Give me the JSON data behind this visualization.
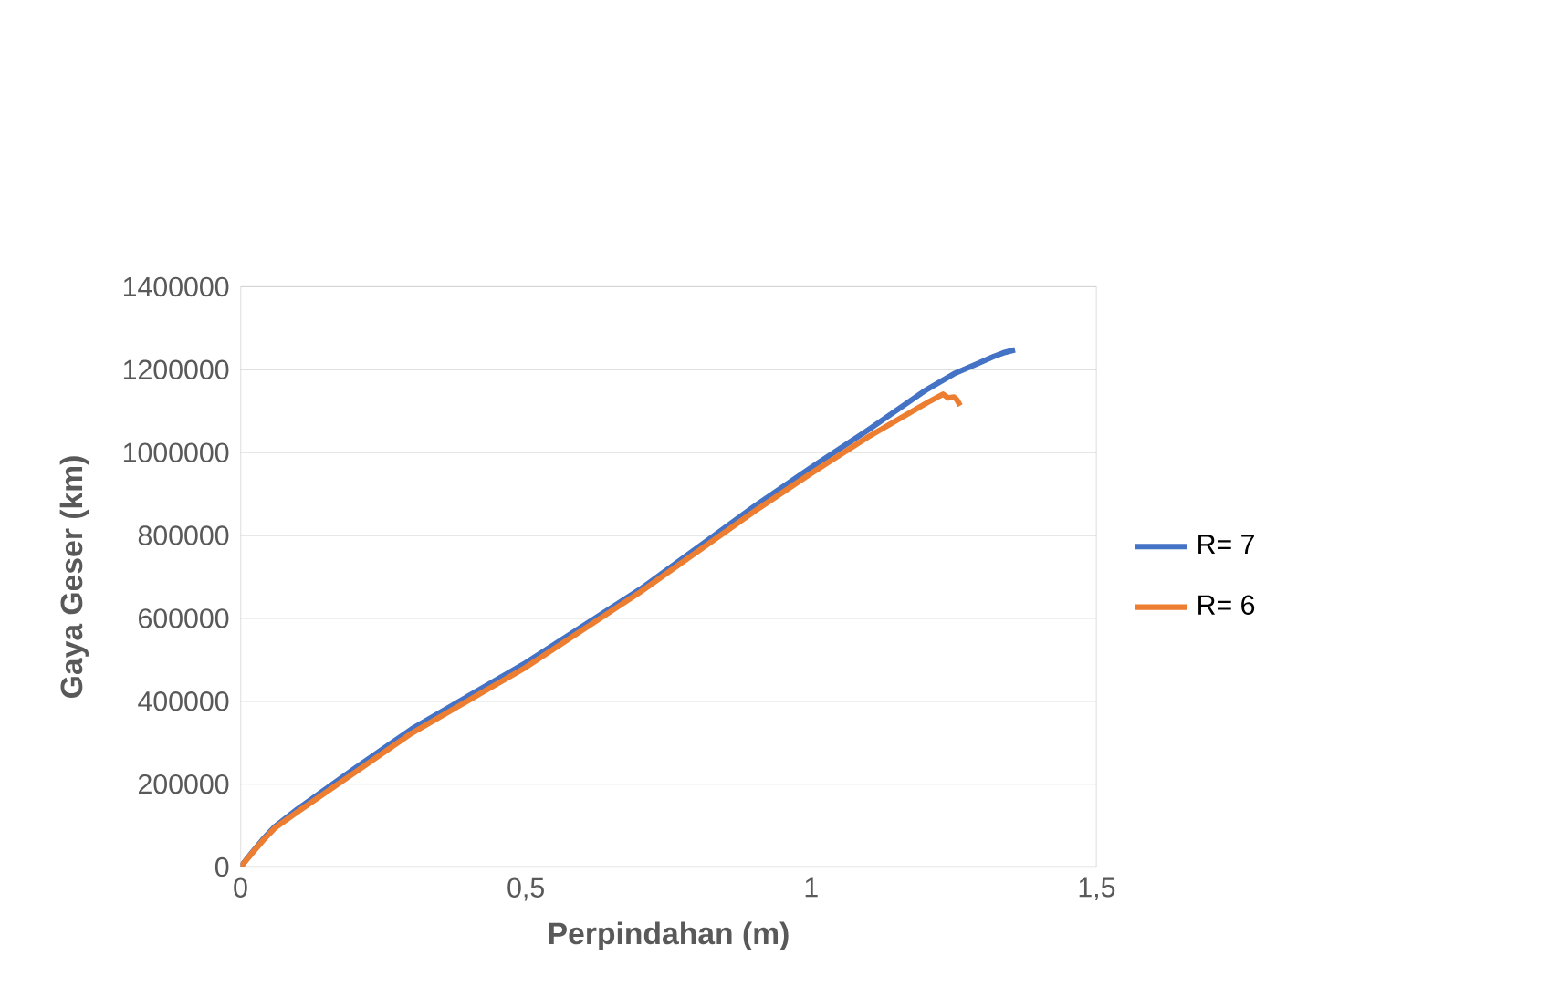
{
  "chart_data": {
    "type": "line",
    "xlabel": "Perpindahan (m)",
    "ylabel": "Gaya Geser (km)",
    "xlim": [
      0,
      1.5
    ],
    "ylim": [
      0,
      1400000
    ],
    "xticks": [
      0,
      {
        "value": 0.5,
        "label": "0,5"
      },
      1,
      {
        "value": 1.5,
        "label": "1,5"
      }
    ],
    "yticks": [
      0,
      200000,
      400000,
      600000,
      800000,
      1000000,
      1200000,
      1400000
    ],
    "grid": "y",
    "legend": "right",
    "marker": "none",
    "series": [
      {
        "name": "R= 7",
        "color": "#4472c4",
        "x": [
          0,
          0.02,
          0.04,
          0.06,
          0.1,
          0.2,
          0.3,
          0.5,
          0.7,
          0.9,
          1.0,
          1.1,
          1.2,
          1.25,
          1.29,
          1.32,
          1.34,
          1.357
        ],
        "values": [
          0,
          35000,
          68000,
          97000,
          140000,
          238000,
          333000,
          493000,
          670000,
          870000,
          964000,
          1055000,
          1150000,
          1190000,
          1214000,
          1232000,
          1242000,
          1248000
        ]
      },
      {
        "name": "R= 6",
        "color": "#ed7d31",
        "x": [
          0,
          0.02,
          0.04,
          0.06,
          0.1,
          0.2,
          0.3,
          0.5,
          0.7,
          0.9,
          1.0,
          1.1,
          1.2,
          1.231,
          1.24,
          1.25,
          1.255,
          1.261
        ],
        "values": [
          0,
          33000,
          65000,
          94000,
          133000,
          228000,
          323000,
          482000,
          663000,
          858000,
          950000,
          1038000,
          1118000,
          1141000,
          1132000,
          1134000,
          1128000,
          1113000
        ]
      }
    ]
  }
}
